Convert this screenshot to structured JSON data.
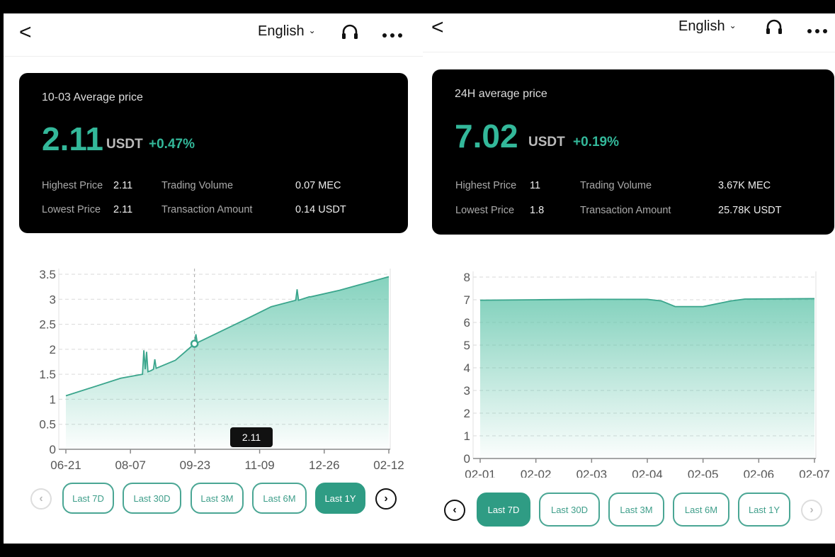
{
  "left": {
    "header": {
      "back": "<",
      "language": "English"
    },
    "card": {
      "title": "10-03 Average price",
      "price": "2.11",
      "unit": "USDT",
      "change": "+0.47%",
      "highest_label": "Highest Price",
      "highest_value": "2.11",
      "lowest_label": "Lowest Price",
      "lowest_value": "2.11",
      "volume_label": "Trading Volume",
      "volume_value": "0.07 MEC",
      "amount_label": "Transaction Amount",
      "amount_value": "0.14 USDT"
    },
    "tooltip": "2.11",
    "ranges": [
      "Last 7D",
      "Last 30D",
      "Last 3M",
      "Last 6M",
      "Last 1Y"
    ],
    "active_range": "Last 1Y"
  },
  "right": {
    "header": {
      "back": "<",
      "language": "English"
    },
    "card": {
      "title": "24H average price",
      "price": "7.02",
      "unit": "USDT",
      "change": "+0.19%",
      "highest_label": "Highest Price",
      "highest_value": "11",
      "lowest_label": "Lowest Price",
      "lowest_value": "1.8",
      "volume_label": "Trading Volume",
      "volume_value": "3.67K MEC",
      "amount_label": "Transaction Amount",
      "amount_value": "25.78K USDT"
    },
    "ranges": [
      "Last 7D",
      "Last 30D",
      "Last 3M",
      "Last 6M",
      "Last 1Y"
    ],
    "active_range": "Last 7D"
  },
  "colors": {
    "accent": "#33b89a",
    "line": "#3aa58c",
    "card_bg": "#000000"
  },
  "chart_data": [
    {
      "type": "area",
      "x_ticks": [
        "06-21",
        "08-07",
        "09-23",
        "11-09",
        "12-26",
        "02-12"
      ],
      "y_ticks": [
        "0",
        "0.5",
        "1",
        "1.5",
        "2",
        "2.5",
        "3",
        "3.5"
      ],
      "ylim": [
        0,
        3.5
      ],
      "xlim": [
        0,
        236
      ],
      "grid": true,
      "highlight": {
        "x": 94,
        "y": 2.11
      },
      "points": [
        [
          0,
          1.07
        ],
        [
          40,
          1.42
        ],
        [
          56,
          1.5
        ],
        [
          57,
          1.98
        ],
        [
          58,
          1.6
        ],
        [
          59,
          1.95
        ],
        [
          60,
          1.55
        ],
        [
          62,
          1.57
        ],
        [
          64,
          1.6
        ],
        [
          65,
          1.8
        ],
        [
          66,
          1.62
        ],
        [
          80,
          1.78
        ],
        [
          94,
          2.11
        ],
        [
          95,
          2.3
        ],
        [
          96,
          2.13
        ],
        [
          130,
          2.58
        ],
        [
          150,
          2.85
        ],
        [
          168,
          2.98
        ],
        [
          169,
          3.2
        ],
        [
          170,
          2.98
        ],
        [
          178,
          3.05
        ],
        [
          179,
          3.05
        ],
        [
          200,
          3.18
        ],
        [
          236,
          3.45
        ]
      ]
    },
    {
      "type": "area",
      "x_ticks": [
        "02-01",
        "02-02",
        "02-03",
        "02-04",
        "02-05",
        "02-06",
        "02-07"
      ],
      "y_ticks": [
        "0",
        "1",
        "2",
        "3",
        "4",
        "5",
        "6",
        "7",
        "8"
      ],
      "ylim": [
        0,
        8
      ],
      "xlim": [
        0,
        6
      ],
      "grid": true,
      "points": [
        [
          0,
          6.98
        ],
        [
          1,
          7.0
        ],
        [
          2,
          7.02
        ],
        [
          3,
          7.02
        ],
        [
          3.25,
          6.95
        ],
        [
          3.5,
          6.7
        ],
        [
          4,
          6.7
        ],
        [
          4.5,
          6.95
        ],
        [
          4.75,
          7.03
        ],
        [
          6,
          7.05
        ]
      ]
    }
  ]
}
